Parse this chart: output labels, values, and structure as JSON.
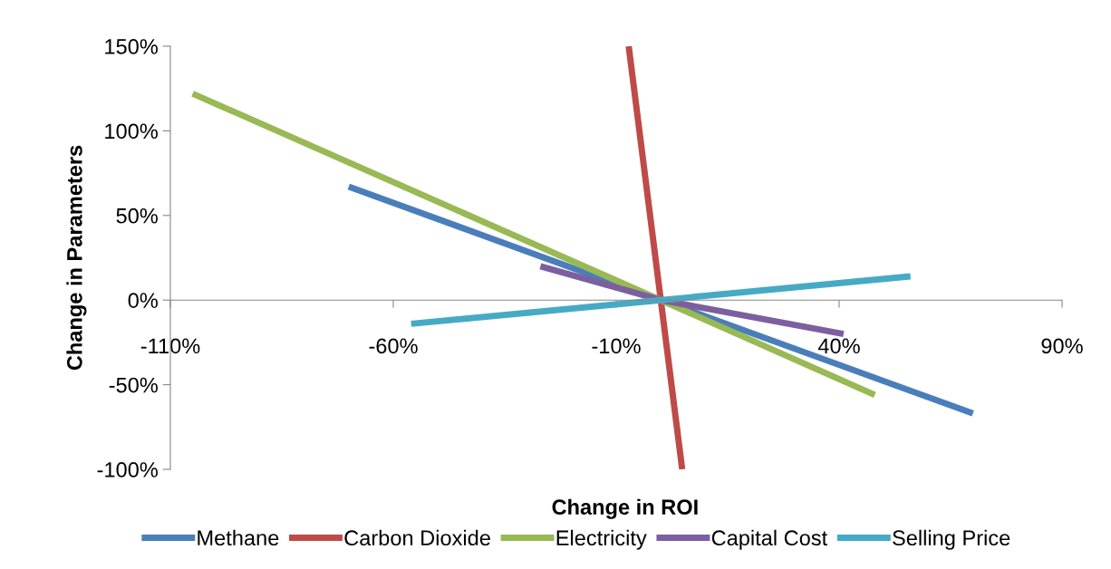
{
  "chart_data": {
    "type": "line",
    "xlabel": "Change in ROI",
    "ylabel": "Change in Parameters",
    "xlim": [
      -110,
      90
    ],
    "ylim": [
      -100,
      150
    ],
    "xticks": [
      {
        "value": -110,
        "label": "-110%"
      },
      {
        "value": -60,
        "label": "-60%"
      },
      {
        "value": -10,
        "label": "-10%"
      },
      {
        "value": 40,
        "label": "40%"
      },
      {
        "value": 90,
        "label": "90%"
      }
    ],
    "yticks": [
      {
        "value": -100,
        "label": "-100%"
      },
      {
        "value": -50,
        "label": "-50%"
      },
      {
        "value": 0,
        "label": "0%"
      },
      {
        "value": 50,
        "label": "50%"
      },
      {
        "value": 100,
        "label": "100%"
      },
      {
        "value": 150,
        "label": "150%"
      }
    ],
    "grid": false,
    "legend": "bottom",
    "marker": "none",
    "line_style": "solid",
    "series": [
      {
        "name": "Methane",
        "color": "#4a7ebb",
        "x": [
          -70,
          0,
          70
        ],
        "values": [
          67,
          0,
          -67
        ]
      },
      {
        "name": "Carbon Dioxide",
        "color": "#be4b48",
        "x": [
          -7.2,
          0,
          4.8
        ],
        "values": [
          150,
          0,
          -100
        ]
      },
      {
        "name": "Electricity",
        "color": "#98b954",
        "x": [
          -105,
          0,
          48
        ],
        "values": [
          122,
          0,
          -56
        ]
      },
      {
        "name": "Capital Cost",
        "color": "#7d5fa0",
        "x": [
          -27,
          0,
          41
        ],
        "values": [
          20,
          0,
          -20
        ]
      },
      {
        "name": "Selling Price",
        "color": "#46aac5",
        "x": [
          -56,
          0,
          56
        ],
        "values": [
          -14,
          0,
          14
        ]
      }
    ]
  }
}
